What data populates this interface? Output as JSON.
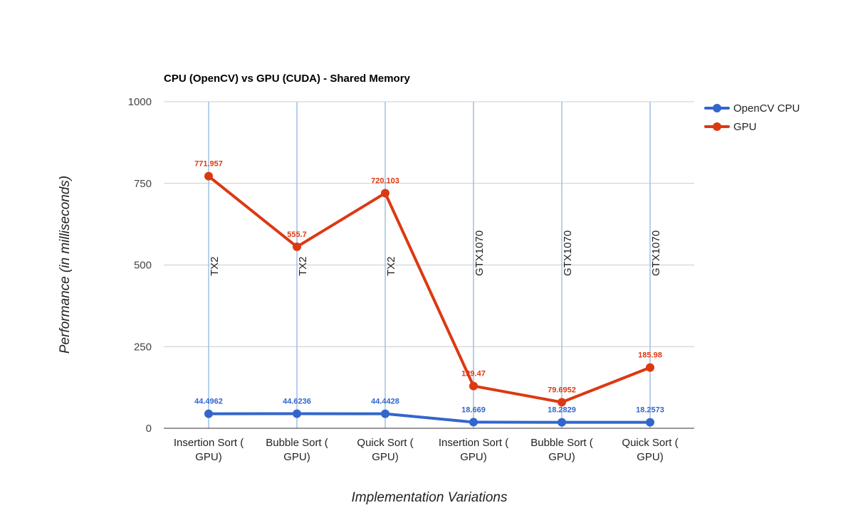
{
  "chart_data": {
    "type": "line",
    "title": "CPU (OpenCV) vs GPU (CUDA) - Shared Memory",
    "xlabel": "Implementation Variations",
    "ylabel": "Performance (in milliseconds)",
    "ylim": [
      0,
      1000
    ],
    "yticks": [
      0,
      250,
      500,
      750,
      1000
    ],
    "ytick_labels": [
      "0",
      "250",
      "500",
      "750",
      "1000"
    ],
    "categories": [
      [
        "Insertion Sort (",
        "GPU)"
      ],
      [
        "Bubble Sort (",
        "GPU)"
      ],
      [
        "Quick Sort (",
        "GPU)"
      ],
      [
        "Insertion Sort (",
        "GPU)"
      ],
      [
        "Bubble Sort (",
        "GPU)"
      ],
      [
        "Quick Sort (",
        "GPU)"
      ]
    ],
    "annotations": [
      "TX2",
      "TX2",
      "TX2",
      "GTX1070",
      "GTX1070",
      "GTX1070"
    ],
    "grid": true,
    "legend_position": "right",
    "series": [
      {
        "name": "OpenCV CPU",
        "color": "#3366cc",
        "values": [
          44.4962,
          44.6236,
          44.4428,
          18.669,
          18.2829,
          18.2573
        ],
        "labels": [
          "44.4962",
          "44.6236",
          "44.4428",
          "18.669",
          "18.2829",
          "18.2573"
        ]
      },
      {
        "name": "GPU",
        "color": "#dc3912",
        "values": [
          771.957,
          555.7,
          720.103,
          129.47,
          79.6952,
          185.98
        ],
        "labels": [
          "771.957",
          "555.7",
          "720.103",
          "129.47",
          "79.6952",
          "185.98"
        ]
      }
    ]
  }
}
